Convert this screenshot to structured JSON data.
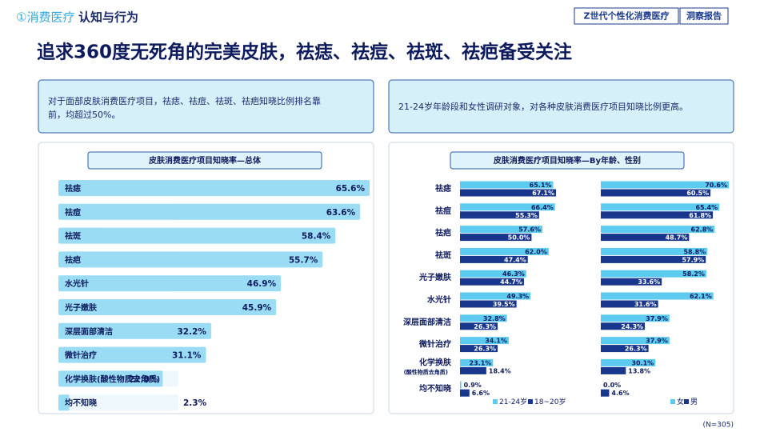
{
  "header": {
    "section": "①消费医疗",
    "topic": "认知与行为",
    "report_name": "Z世代个性化消费医疗",
    "report_type": "洞察报告"
  },
  "title": "追求360度无死角的完美皮肤，祛痣、祛痘、祛斑、祛疤备受关注",
  "callouts": [
    "对于面部皮肤消费医疗项目，祛痣、祛痘、祛斑、祛疤知晓比例排名靠前，均超过50%。",
    "21-24岁年龄段和女性调研对象，对各种皮肤消费医疗项目知晓比例更高。"
  ],
  "note": "(N=305)",
  "chart_data": [
    {
      "type": "bar",
      "orientation": "horizontal",
      "title": "皮肤消费医疗项目知晓率—总体",
      "color": "#9adcf3",
      "categories": [
        "祛痣",
        "祛痘",
        "祛斑",
        "祛疤",
        "水光针",
        "光子嫩肤",
        "深层面部清洁",
        "微针治疗",
        "化学换肤(酸性物质去角质)",
        "均不知晓"
      ],
      "values": [
        65.6,
        63.6,
        58.4,
        55.7,
        46.9,
        45.9,
        32.2,
        31.1,
        22.0,
        2.3
      ],
      "value_labels": [
        "65.6%",
        "63.6%",
        "58.4%",
        "55.7%",
        "46.9%",
        "45.9%",
        "32.2%",
        "31.1%",
        "22.0%",
        "2.3%"
      ]
    },
    {
      "type": "grouped_bar",
      "orientation": "horizontal",
      "title": "皮肤消费医疗项目知晓率—By年龄、性别",
      "categories": [
        "祛痣",
        "祛痘",
        "祛疤",
        "祛斑",
        "光子嫩肤",
        "水光针",
        "深层面部清洁",
        "微针治疗",
        "化学换肤",
        "均不知晓"
      ],
      "category_notes": [
        null,
        null,
        null,
        null,
        null,
        null,
        null,
        null,
        "(酸性物质去角质)",
        null
      ],
      "panels": [
        {
          "series": [
            {
              "name": "21-24岁",
              "color": "#5ccbef",
              "values": [
                65.1,
                66.4,
                57.6,
                62.0,
                46.3,
                49.3,
                32.8,
                34.1,
                23.1,
                0.9
              ],
              "value_labels": [
                "65.1%",
                "66.4%",
                "57.6%",
                "62.0%",
                "46.3%",
                "49.3%",
                "32.8%",
                "34.1%",
                "23.1%",
                "0.9%"
              ]
            },
            {
              "name": "18~20岁",
              "color": "#17368c",
              "values": [
                67.1,
                55.3,
                50.0,
                47.4,
                44.7,
                39.5,
                26.3,
                26.3,
                18.4,
                6.6
              ],
              "value_labels": [
                "67.1%",
                "55.3%",
                "50.0%",
                "47.4%",
                "44.7%",
                "39.5%",
                "26.3%",
                "26.3%",
                "18.4%",
                "6.6%"
              ]
            }
          ]
        },
        {
          "series": [
            {
              "name": "女",
              "color": "#5ccbef",
              "values": [
                70.6,
                65.4,
                62.8,
                58.8,
                58.2,
                62.1,
                37.9,
                37.9,
                30.1,
                0.0
              ],
              "value_labels": [
                "70.6%",
                "65.4%",
                "62.8%",
                "58.8%",
                "58.2%",
                "62.1%",
                "37.9%",
                "37.9%",
                "30.1%",
                "0.0%"
              ]
            },
            {
              "name": "男",
              "color": "#17368c",
              "values": [
                60.5,
                61.8,
                48.7,
                57.9,
                33.6,
                31.6,
                24.3,
                26.3,
                13.8,
                4.6
              ],
              "value_labels": [
                "60.5%",
                "61.8%",
                "48.7%",
                "57.9%",
                "33.6%",
                "31.6%",
                "24.3%",
                "26.3%",
                "13.8%",
                "4.6%"
              ]
            }
          ]
        }
      ]
    }
  ]
}
